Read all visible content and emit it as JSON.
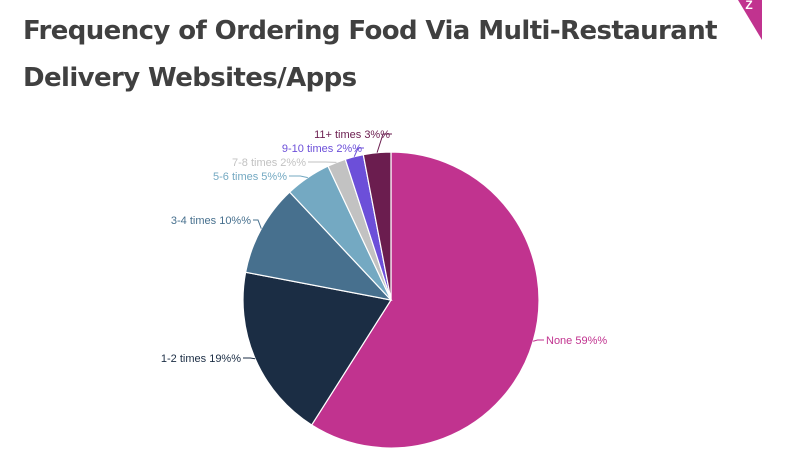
{
  "header": {
    "title_line1": "Frequency of Ordering Food Via Multi-Restaurant",
    "title_line2": "Delivery Websites/Apps",
    "corner_badge_color": "#c1338f",
    "corner_badge_text": "Z"
  },
  "chart_data": {
    "type": "pie",
    "title": "Frequency of Ordering Food Via Multi-Restaurant Delivery Websites/Apps",
    "start_angle": "12 o'clock, clockwise",
    "categories": [
      "None",
      "1-2 times",
      "3-4 times",
      "5-6 times",
      "7-8 times",
      "9-10 times",
      "11+ times"
    ],
    "values": [
      59,
      19,
      10,
      5,
      2,
      2,
      3
    ],
    "unit": "%",
    "colors": [
      "#c1338f",
      "#1b2d44",
      "#47708e",
      "#74a9c2",
      "#c2c2c2",
      "#6c4fd9",
      "#6b1d4f"
    ],
    "labels": [
      "None 59%%",
      "1-2 times 19%%",
      "3-4 times 10%%",
      "5-6 times 5%%",
      "7-8 times 2%%",
      "9-10 times 2%%",
      "11+ times 3%%"
    ],
    "label_colors": [
      "#c1338f",
      "#1b2d44",
      "#47708e",
      "#74a9c2",
      "#c2c2c2",
      "#6c4fd9",
      "#6b1d4f"
    ],
    "legend": "none (inline labels with leader lines)"
  }
}
